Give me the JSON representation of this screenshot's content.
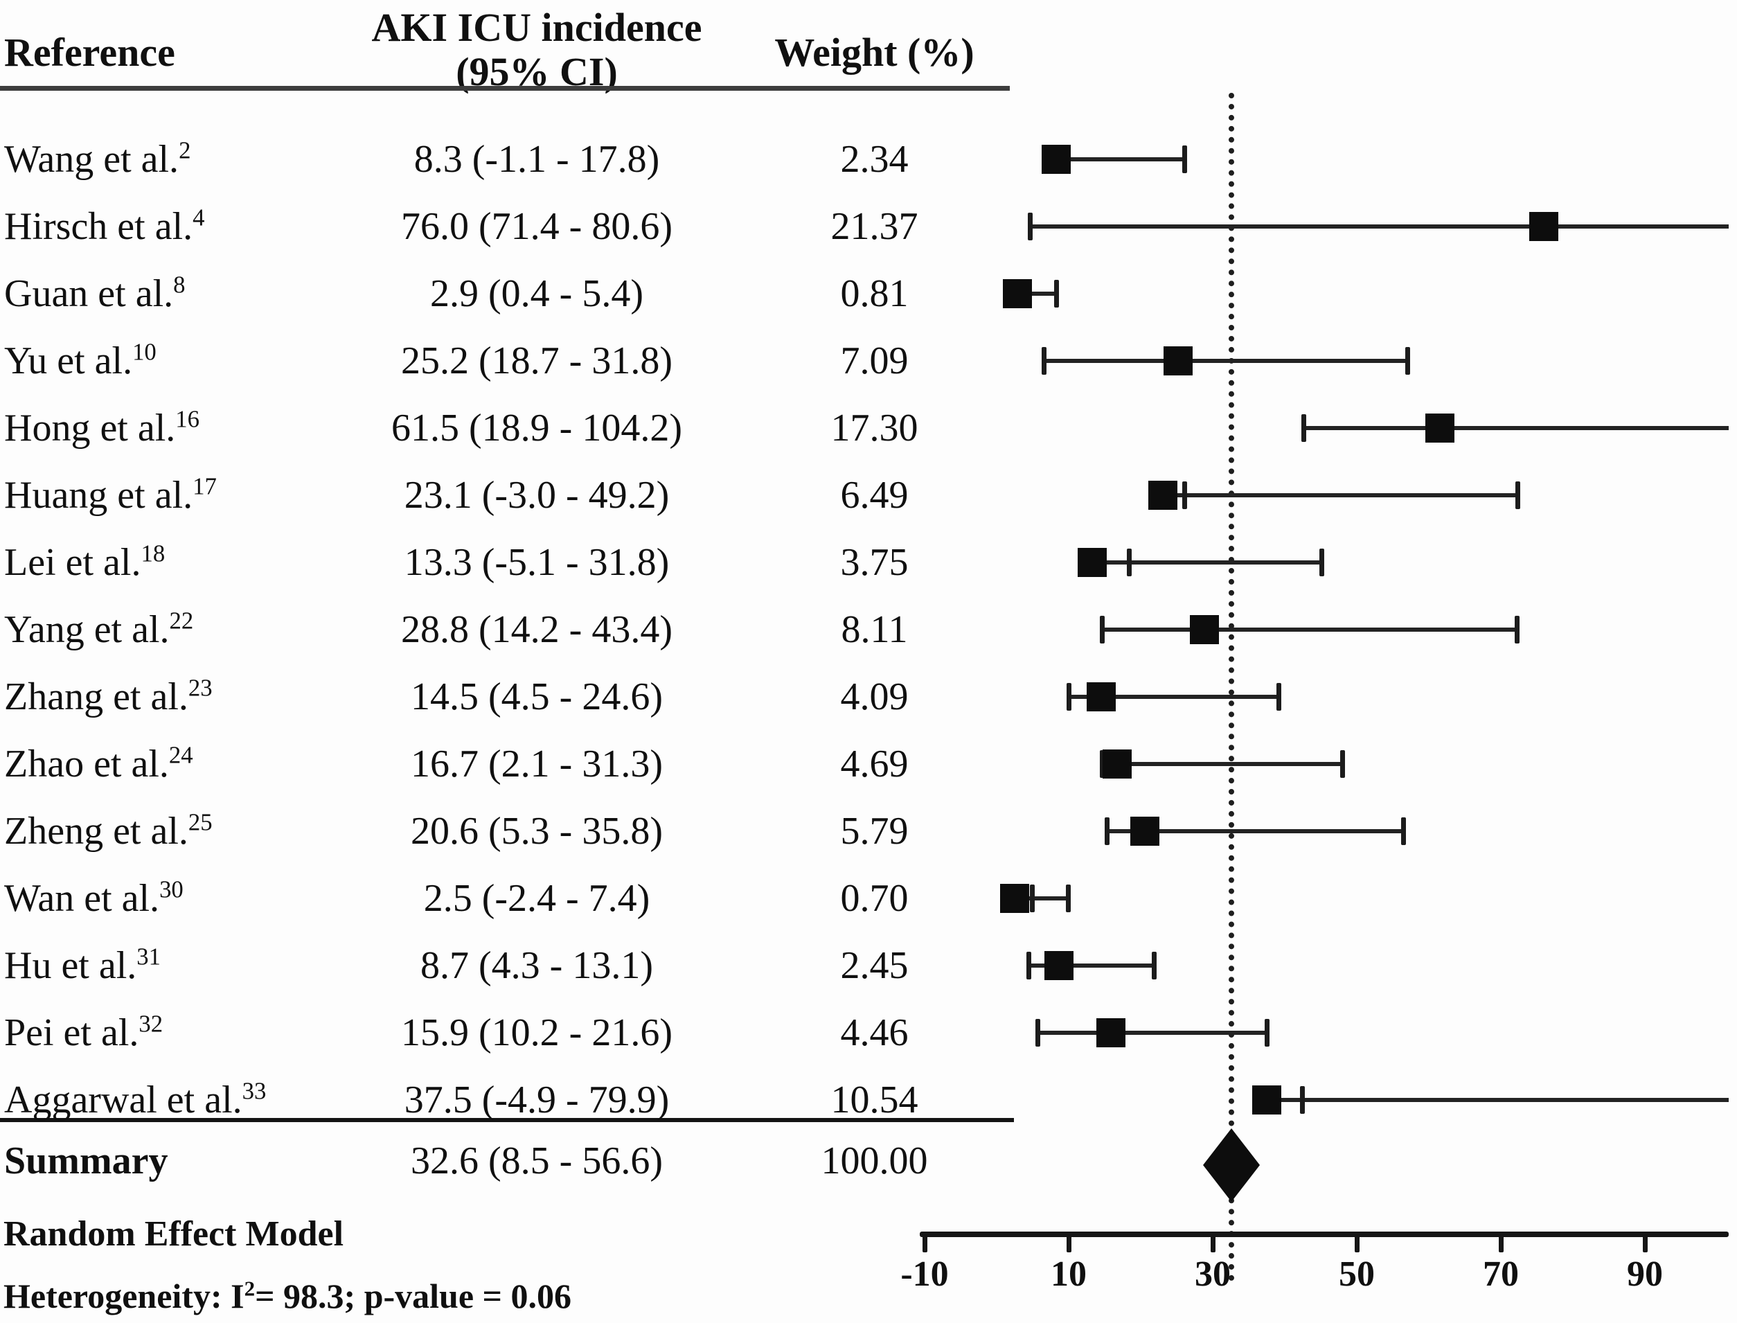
{
  "header": {
    "col_reference": "Reference",
    "col_effect_line1": "AKI ICU incidence",
    "col_effect_line2": "(95% CI)",
    "col_weight": "Weight (%)"
  },
  "footer": {
    "model": "Random Effect Model",
    "het_prefix": "Heterogeneity: I",
    "het_sup": "2",
    "het_rest": "= 98.3; p-value = 0.06"
  },
  "colors": {
    "background": "#fdfdfd",
    "text": "#101010",
    "marker": "#0d0d0d",
    "ci_line": "#232323",
    "header_rule": "#3d3d3d"
  },
  "chart_data": {
    "type": "forest",
    "effect_label": "AKI ICU incidence (95% CI)",
    "rows": [
      {
        "ref": "Wang et al.",
        "sup": "2",
        "est": 8.3,
        "ci_low": -1.1,
        "ci_high": 17.8,
        "ci_text": "8.3 (-1.1 - 17.8)",
        "weight": "2.34"
      },
      {
        "ref": "Hirsch et al.",
        "sup": "4",
        "est": 76.0,
        "ci_low": 71.4,
        "ci_high": 80.6,
        "ci_text": "76.0 (71.4 - 80.6)",
        "weight": "21.37"
      },
      {
        "ref": "Guan et al.",
        "sup": "8",
        "est": 2.9,
        "ci_low": 0.4,
        "ci_high": 5.4,
        "ci_text": "2.9 (0.4 - 5.4)",
        "weight": "0.81"
      },
      {
        "ref": "Yu et al.",
        "sup": "10",
        "est": 25.2,
        "ci_low": 18.7,
        "ci_high": 31.8,
        "ci_text": "25.2 (18.7 - 31.8)",
        "weight": "7.09"
      },
      {
        "ref": "Hong et al.",
        "sup": "16",
        "est": 61.5,
        "ci_low": 18.9,
        "ci_high": 104.2,
        "ci_text": "61.5 (18.9 - 104.2)",
        "weight": "17.30"
      },
      {
        "ref": "Huang et al.",
        "sup": "17",
        "est": 23.1,
        "ci_low": -3.0,
        "ci_high": 49.2,
        "ci_text": "23.1 (-3.0 - 49.2)",
        "weight": "6.49"
      },
      {
        "ref": "Lei et al.",
        "sup": "18",
        "est": 13.3,
        "ci_low": -5.1,
        "ci_high": 31.8,
        "ci_text": "13.3 (-5.1 - 31.8)",
        "weight": "3.75"
      },
      {
        "ref": "Yang et al.",
        "sup": "22",
        "est": 28.8,
        "ci_low": 14.2,
        "ci_high": 43.4,
        "ci_text": "28.8 (14.2 - 43.4)",
        "weight": "8.11"
      },
      {
        "ref": "Zhang et al.",
        "sup": "23",
        "est": 14.5,
        "ci_low": 4.5,
        "ci_high": 24.6,
        "ci_text": "14.5 (4.5 - 24.6)",
        "weight": "4.09"
      },
      {
        "ref": "Zhao et al.",
        "sup": "24",
        "est": 16.7,
        "ci_low": 2.1,
        "ci_high": 31.3,
        "ci_text": "16.7 (2.1 - 31.3)",
        "weight": "4.69"
      },
      {
        "ref": "Zheng et al.",
        "sup": "25",
        "est": 20.6,
        "ci_low": 5.3,
        "ci_high": 35.8,
        "ci_text": "20.6 (5.3 - 35.8)",
        "weight": "5.79"
      },
      {
        "ref": "Wan et al.",
        "sup": "30",
        "est": 2.5,
        "ci_low": -2.4,
        "ci_high": 7.4,
        "ci_text": "2.5 (-2.4 - 7.4)",
        "weight": "0.70"
      },
      {
        "ref": "Hu et al.",
        "sup": "31",
        "est": 8.7,
        "ci_low": 4.3,
        "ci_high": 13.1,
        "ci_text": "8.7 (4.3 - 13.1)",
        "weight": "2.45"
      },
      {
        "ref": "Pei et al.",
        "sup": "32",
        "est": 15.9,
        "ci_low": 10.2,
        "ci_high": 21.6,
        "ci_text": "15.9 (10.2 - 21.6)",
        "weight": "4.46"
      },
      {
        "ref": "Aggarwal et al.",
        "sup": "33",
        "est": 37.5,
        "ci_low": -4.9,
        "ci_high": 79.9,
        "ci_text": "37.5 (-4.9 - 79.9)",
        "weight": "10.54"
      }
    ],
    "summary": {
      "label": "Summary",
      "est": 32.6,
      "ci_low": 8.5,
      "ci_high": 56.6,
      "ci_text": "32.6 (8.5 - 56.6)",
      "weight": "100.00"
    },
    "axis": {
      "tick_values": [
        -10,
        10,
        30,
        50,
        70,
        90
      ],
      "tick_labels": [
        "-10",
        "10",
        "30",
        "50",
        "70",
        "90"
      ],
      "range_shown": [
        -13,
        101
      ],
      "reference_line_value": 32.6,
      "whisker_rule_as_drawn": "whiskers span (estimate - ci_low) to (estimate + ci_high), clipped at right plot edge"
    }
  }
}
